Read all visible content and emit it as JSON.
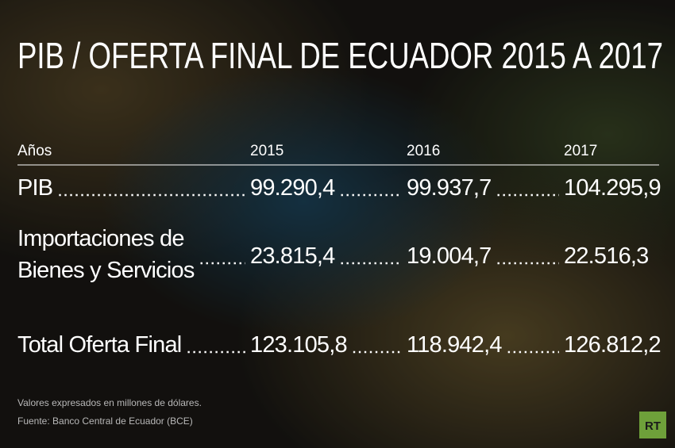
{
  "title": "PIB / OFERTA FINAL DE ECUADOR 2015 A 2017",
  "table": {
    "header": [
      "Años",
      "2015",
      "2016",
      "2017"
    ],
    "rows": [
      {
        "label": [
          "PIB"
        ],
        "values": [
          "99.290,4",
          "99.937,7",
          "104.295,9"
        ]
      },
      {
        "label": [
          "Importaciones de",
          "Bienes y Servicios"
        ],
        "values": [
          "23.815,4",
          "19.004,7",
          "22.516,3"
        ]
      },
      {
        "label": [
          "Total Oferta Final"
        ],
        "values": [
          "123.105,8",
          "118.942,4",
          "126.812,2"
        ]
      }
    ]
  },
  "notes": [
    "Valores expresados en millones de dólares.",
    "Fuente: Banco Central de Ecuador (BCE)"
  ],
  "logo": "RT"
}
